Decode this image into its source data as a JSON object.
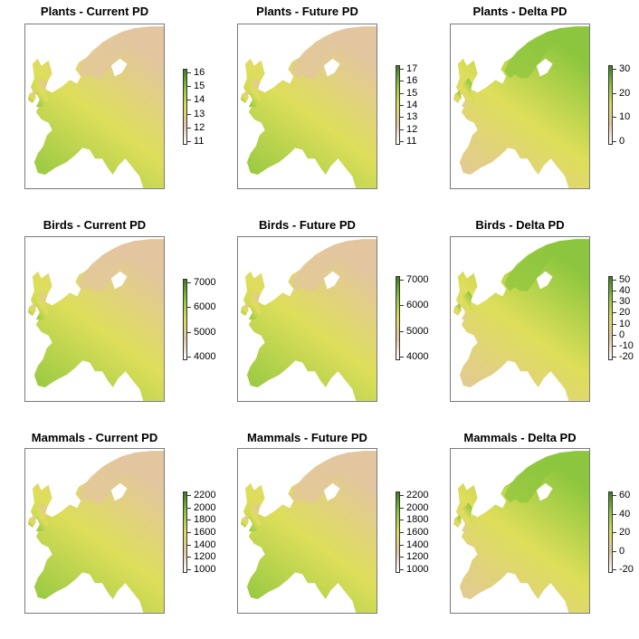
{
  "colors": {
    "low": "#ffffff",
    "tan": "#e3c6a0",
    "yellow": "#dede5a",
    "green": "#8cc63e",
    "dark": "#3f7d1d"
  },
  "panels": [
    {
      "id": "plants-current",
      "title": "Plants - Current PD",
      "kind": "current",
      "ticks": [
        "16",
        "15",
        "14",
        "13",
        "12",
        "11"
      ]
    },
    {
      "id": "plants-future",
      "title": "Plants - Future PD",
      "kind": "future",
      "ticks": [
        "17",
        "16",
        "15",
        "14",
        "13",
        "12",
        "11"
      ]
    },
    {
      "id": "plants-delta",
      "title": "Plants - Delta PD",
      "kind": "delta",
      "ticks": [
        "30",
        "20",
        "10",
        "0"
      ]
    },
    {
      "id": "birds-current",
      "title": "Birds - Current PD",
      "kind": "current",
      "ticks": [
        "7000",
        "6000",
        "5000",
        "4000"
      ]
    },
    {
      "id": "birds-future",
      "title": "Birds - Future PD",
      "kind": "future",
      "ticks": [
        "7000",
        "6000",
        "5000",
        "4000"
      ]
    },
    {
      "id": "birds-delta",
      "title": "Birds - Delta PD",
      "kind": "delta",
      "ticks": [
        "50",
        "40",
        "30",
        "20",
        "10",
        "0",
        "-10",
        "-20"
      ]
    },
    {
      "id": "mammals-current",
      "title": "Mammals - Current PD",
      "kind": "current",
      "ticks": [
        "2200",
        "2000",
        "1800",
        "1600",
        "1400",
        "1200",
        "1000"
      ]
    },
    {
      "id": "mammals-future",
      "title": "Mammals - Future PD",
      "kind": "future",
      "ticks": [
        "2200",
        "2000",
        "1800",
        "1600",
        "1400",
        "1200",
        "1000"
      ]
    },
    {
      "id": "mammals-delta",
      "title": "Mammals - Delta PD",
      "kind": "delta",
      "ticks": [
        "60",
        "40",
        "20",
        "0",
        "-20"
      ]
    }
  ]
}
